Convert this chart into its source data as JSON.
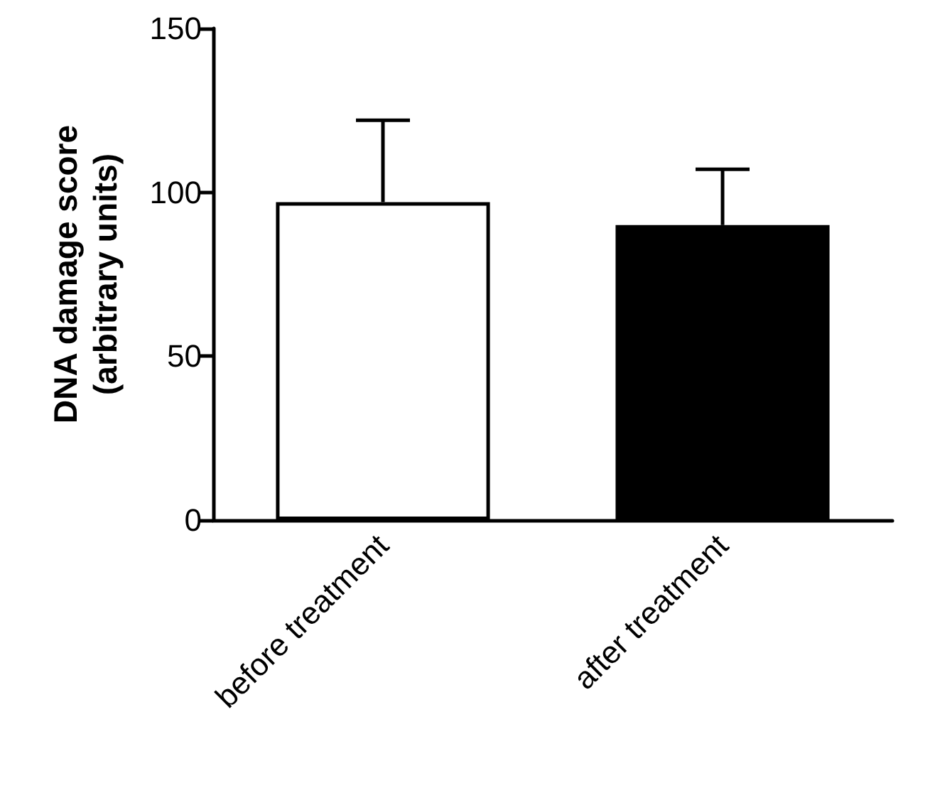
{
  "chart_data": {
    "type": "bar",
    "ylabel": "DNA damage score\n(arbitrary units)",
    "categories": [
      "before treatment",
      "after treatment"
    ],
    "values": [
      97,
      90
    ],
    "errors": [
      [
        97,
        122
      ],
      [
        90,
        107
      ]
    ],
    "colors": [
      "#ffffff",
      "#000000"
    ],
    "ylim": [
      0,
      150
    ],
    "yticks": [
      0,
      50,
      100,
      150
    ],
    "grid": false
  }
}
